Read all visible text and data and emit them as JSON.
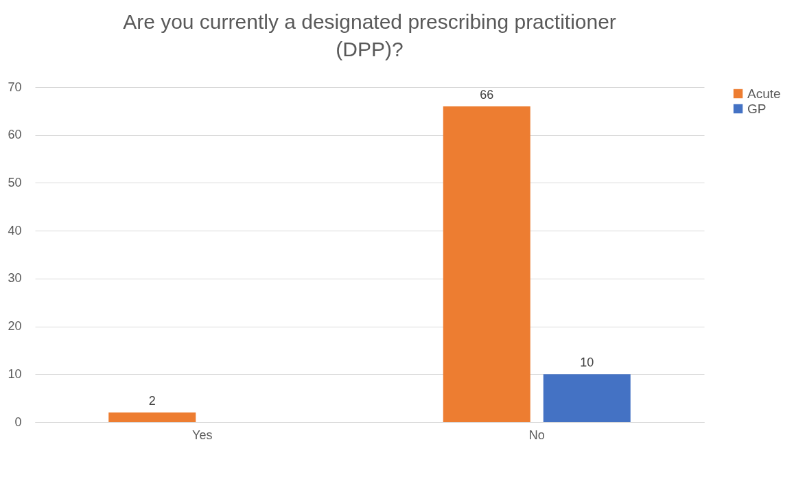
{
  "chart_data": {
    "type": "bar",
    "title": "Are you currently a designated prescribing practitioner (DPP)?",
    "categories": [
      "Yes",
      "No"
    ],
    "series": [
      {
        "name": "Acute",
        "color": "#ed7d31",
        "values": [
          2,
          66
        ],
        "value_labels": [
          "2",
          "66"
        ]
      },
      {
        "name": "GP",
        "color": "#4472c4",
        "values": [
          null,
          10
        ],
        "value_labels": [
          null,
          "10"
        ]
      }
    ],
    "ylim": [
      0,
      70
    ],
    "yticks": [
      0,
      10,
      20,
      30,
      40,
      50,
      60,
      70
    ],
    "grid": "y",
    "legend": "right"
  }
}
